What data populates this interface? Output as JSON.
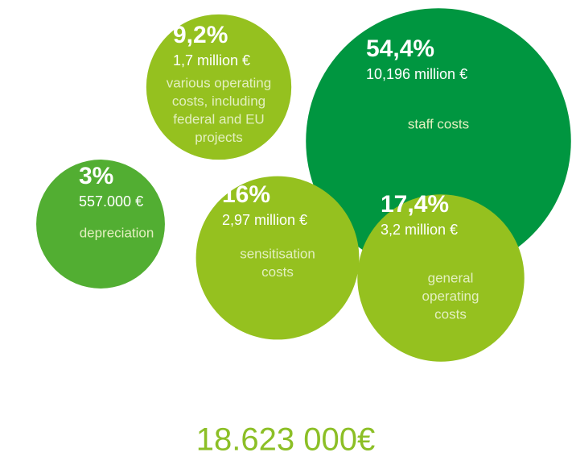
{
  "chart_data": {
    "type": "bubble",
    "categories": [
      [
        "staff costs"
      ],
      [
        "various operating",
        "costs, including",
        "federal and EU",
        "projects"
      ],
      [
        "depreciation"
      ],
      [
        "sensitisation",
        "costs"
      ],
      [
        "general",
        "operating",
        "costs"
      ]
    ],
    "values": [
      54.4,
      9.2,
      3,
      16,
      17.4
    ],
    "value_labels": [
      "54,4%",
      "9,2%",
      "3%",
      "16%",
      "17,4%"
    ],
    "amount_labels": [
      "10,196 million €",
      "1,7 million €",
      "557.000 €",
      "2,97 million €",
      "3,2 million €"
    ],
    "colors": [
      "#009640",
      "#95c11f",
      "#52ae32",
      "#95c11f",
      "#95c11f"
    ],
    "total": "18.623 000€"
  }
}
